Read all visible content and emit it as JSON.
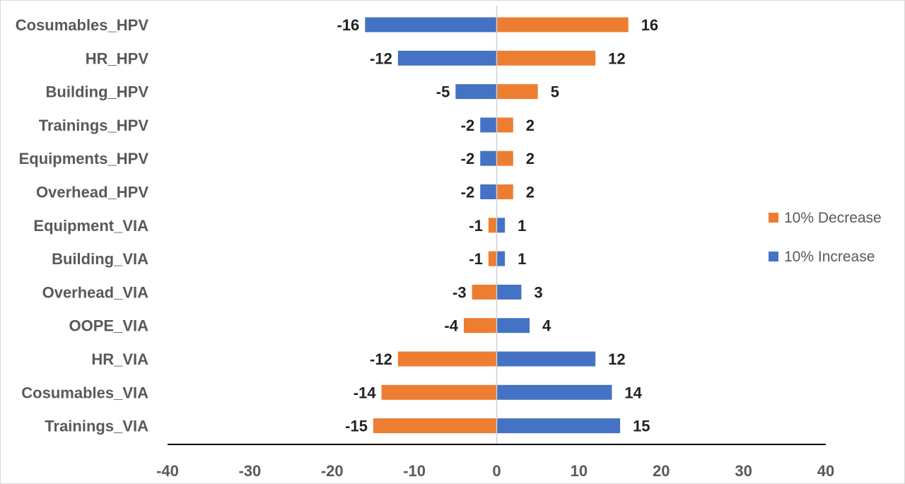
{
  "chart_data": {
    "type": "bar",
    "orientation": "horizontal",
    "stacked": false,
    "categories": [
      "Cosumables_HPV",
      "HR_HPV",
      "Building_HPV",
      "Trainings_HPV",
      "Equipments_HPV",
      "Overhead_HPV",
      "Equipment_VIA",
      "Building_VIA",
      "Overhead_VIA",
      "OOPE_VIA",
      "HR_VIA",
      "Cosumables_VIA",
      "Trainings_VIA"
    ],
    "negative_values": [
      -16,
      -12,
      -5,
      -2,
      -2,
      -2,
      -1,
      -1,
      -3,
      -4,
      -12,
      -14,
      -15
    ],
    "positive_values": [
      16,
      12,
      5,
      2,
      2,
      2,
      1,
      1,
      3,
      4,
      12,
      14,
      15
    ],
    "negative_labels": [
      "-16",
      "-12",
      "-5",
      "-2",
      "-2",
      "-2",
      "-1",
      "-1",
      "-3",
      "-4",
      "-12",
      "-14",
      "-15"
    ],
    "positive_labels": [
      "16",
      "12",
      "5",
      "2",
      "2",
      "2",
      "1",
      "1",
      "3",
      "4",
      "12",
      "14",
      "15"
    ],
    "series": [
      {
        "name": "10% Decrease",
        "color": "#ED7D31"
      },
      {
        "name": "10% Increase",
        "color": "#4472C4"
      }
    ],
    "negative_series_index": [
      1,
      1,
      1,
      1,
      1,
      1,
      0,
      0,
      0,
      0,
      0,
      0,
      0
    ],
    "positive_series_index": [
      0,
      0,
      0,
      0,
      0,
      0,
      1,
      1,
      1,
      1,
      1,
      1,
      1
    ],
    "xlim": [
      -40,
      40
    ],
    "xticks": [
      -40,
      -30,
      -20,
      -10,
      0,
      10,
      20,
      30,
      40
    ],
    "xtick_labels": [
      "-40",
      "-30",
      "-20",
      "-10",
      "0",
      "10",
      "20",
      "30",
      "40"
    ],
    "grid": false,
    "legend_position": "right",
    "title": "",
    "xlabel": "",
    "ylabel": ""
  }
}
